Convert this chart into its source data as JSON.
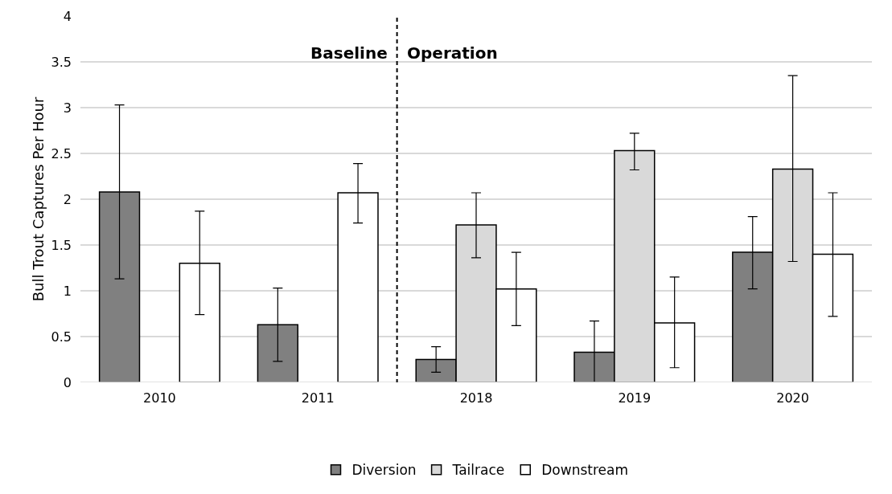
{
  "chart_data": {
    "type": "bar",
    "ylabel": "Bull Trout Captures Per Hour",
    "categories": [
      "2010",
      "2011",
      "2018",
      "2019",
      "2020"
    ],
    "series": [
      {
        "name": "Diversion",
        "color": "#808080",
        "values": [
          2.08,
          0.63,
          0.25,
          0.33,
          1.42
        ],
        "errors": [
          [
            1.13,
            3.03
          ],
          [
            0.23,
            1.03
          ],
          [
            0.11,
            0.39
          ],
          [
            0,
            0.67
          ],
          [
            1.02,
            1.81
          ]
        ]
      },
      {
        "name": "Tailrace",
        "color": "#d9d9d9",
        "values": [
          null,
          null,
          1.72,
          2.53,
          2.33
        ],
        "errors": [
          null,
          null,
          [
            1.36,
            2.07
          ],
          [
            2.32,
            2.72
          ],
          [
            1.32,
            3.35
          ]
        ]
      },
      {
        "name": "Downstream",
        "color": "#ffffff",
        "values": [
          1.3,
          2.07,
          1.02,
          0.65,
          1.4
        ],
        "errors": [
          [
            0.74,
            1.87
          ],
          [
            1.74,
            2.39
          ],
          [
            0.62,
            1.42
          ],
          [
            0.16,
            1.15
          ],
          [
            0.72,
            2.07
          ]
        ]
      }
    ],
    "ylim": [
      0,
      4
    ],
    "yticks": [
      0,
      0.5,
      1,
      1.5,
      2,
      2.5,
      3,
      3.5,
      4
    ],
    "annotations": [
      "Baseline",
      "Operation"
    ],
    "grid": "y",
    "legend": "bottom"
  }
}
